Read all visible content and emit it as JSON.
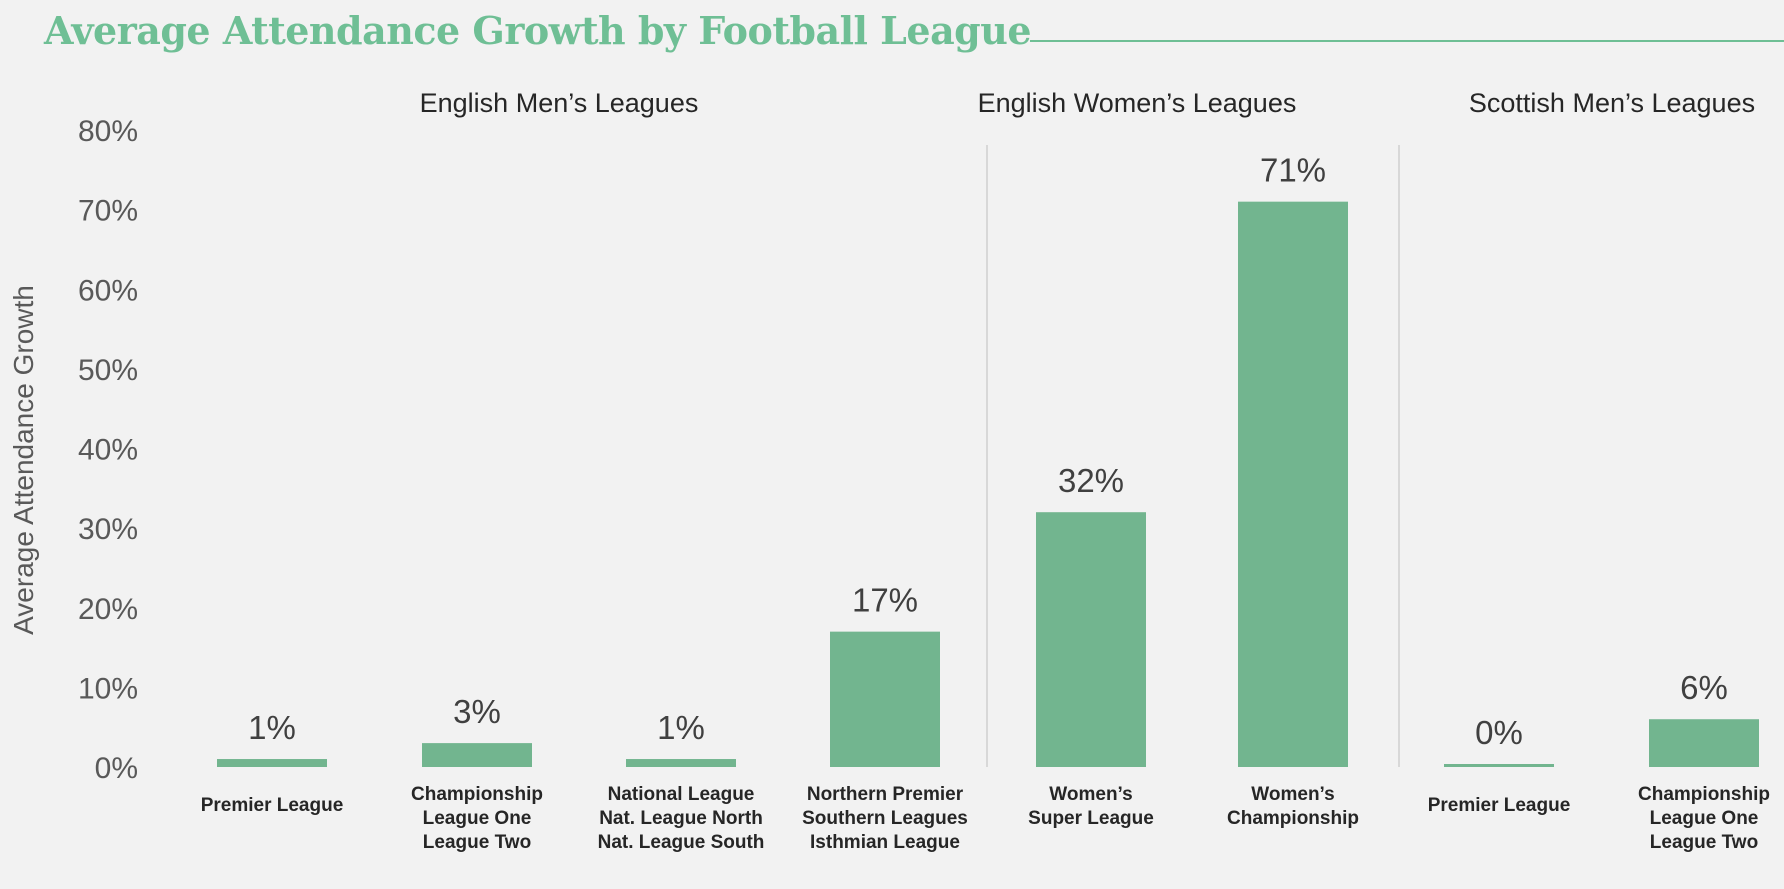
{
  "title": "Average Attendance Growth by Football League",
  "chart_data": {
    "type": "bar",
    "title": "Average Attendance Growth by Football League",
    "ylabel": "Average Attendance Growth",
    "xlabel": "",
    "ylim": [
      0,
      80
    ],
    "yticks": [
      "0%",
      "10%",
      "20%",
      "30%",
      "40%",
      "50%",
      "60%",
      "70%",
      "80%"
    ],
    "grid": false,
    "legend": "none",
    "bar_color": "#72b58f",
    "groups": [
      {
        "name": "English Men’s Leagues",
        "categories": [
          [
            "Premier League"
          ],
          [
            "Championship",
            "League One",
            "League Two"
          ],
          [
            "National League",
            "Nat. League North",
            "Nat. League South"
          ],
          [
            "Northern Premier",
            "Southern Leagues",
            "Isthmian League"
          ]
        ],
        "values": [
          1,
          3,
          1,
          17
        ],
        "labels": [
          "1%",
          "3%",
          "1%",
          "17%"
        ]
      },
      {
        "name": "English Women’s Leagues",
        "categories": [
          [
            "Women’s",
            "Super League"
          ],
          [
            "Women’s",
            "Championship"
          ]
        ],
        "values": [
          32,
          71
        ],
        "labels": [
          "32%",
          "71%"
        ]
      },
      {
        "name": "Scottish Men’s Leagues",
        "categories": [
          [
            "Premier League"
          ],
          [
            "Championship",
            "League One",
            "League Two"
          ]
        ],
        "values": [
          0,
          6
        ],
        "labels": [
          "0%",
          "6%"
        ]
      }
    ]
  }
}
